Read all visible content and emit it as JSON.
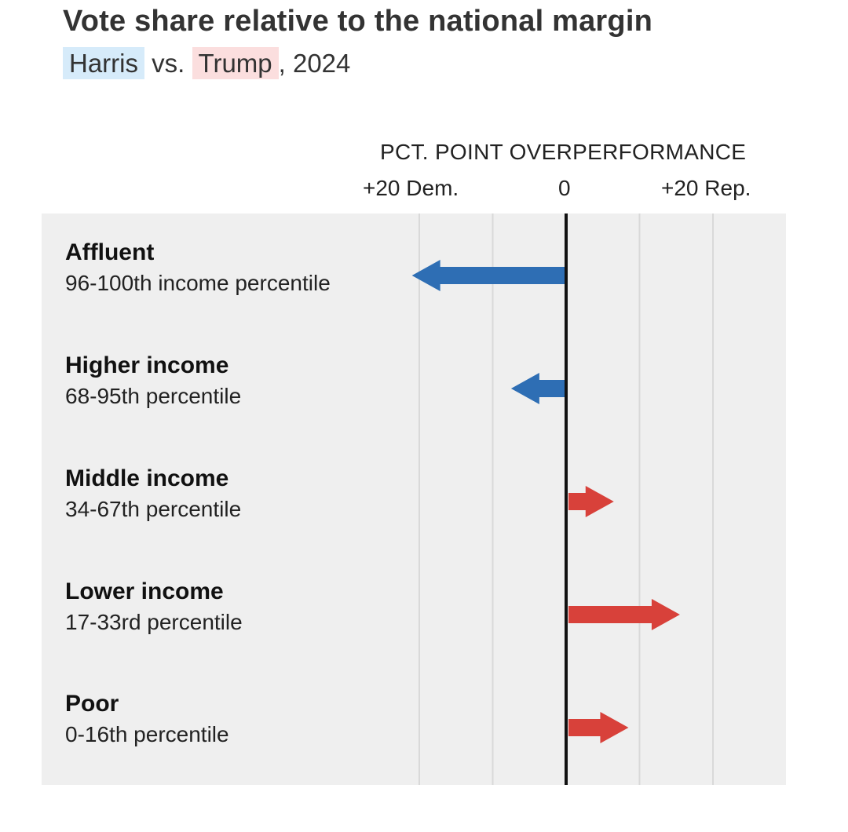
{
  "chart_data": {
    "type": "bar",
    "title": "Vote share relative to the national margin",
    "subtitle": {
      "harris": "Harris",
      "vs": "vs.",
      "trump": "Trump",
      "year": ", 2024"
    },
    "axis_title": "PCT. POINT OVERPERFORMANCE",
    "tick_labels": {
      "dem": "+20 Dem.",
      "zero": "0",
      "rep": "+20 Rep."
    },
    "xlim": [
      -20,
      20
    ],
    "gridlines": [
      -20,
      -10,
      10,
      20
    ],
    "categories": [
      {
        "name": "Affluent",
        "sub": "96-100th income percentile",
        "value": -21
      },
      {
        "name": "Higher income",
        "sub": "68-95th percentile",
        "value": -7.5
      },
      {
        "name": "Middle income",
        "sub": "34-67th percentile",
        "value": 6.5
      },
      {
        "name": "Lower income",
        "sub": "17-33rd percentile",
        "value": 15.5
      },
      {
        "name": "Poor",
        "sub": "0-16th percentile",
        "value": 8.5
      }
    ],
    "colors": {
      "dem": "#2e6eb4",
      "rep": "#d8413a",
      "zero_line": "#111111",
      "grid": "#d9d9d9"
    }
  }
}
